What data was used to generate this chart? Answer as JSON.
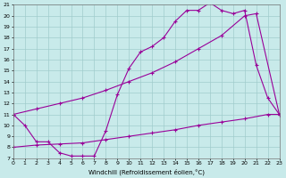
{
  "xlabel": "Windchill (Refroidissement éolien,°C)",
  "line_color": "#990099",
  "bg_color": "#c8eaea",
  "grid_color": "#a0cccc",
  "xlim": [
    0,
    23
  ],
  "ylim": [
    7,
    21
  ],
  "xticks": [
    0,
    1,
    2,
    3,
    4,
    5,
    6,
    7,
    8,
    9,
    10,
    11,
    12,
    13,
    14,
    15,
    16,
    17,
    18,
    19,
    20,
    21,
    22,
    23
  ],
  "yticks": [
    7,
    8,
    9,
    10,
    11,
    12,
    13,
    14,
    15,
    16,
    17,
    18,
    19,
    20,
    21
  ],
  "series": [
    {
      "x": [
        0,
        1,
        2,
        3,
        4,
        5,
        6,
        7,
        8,
        9,
        10,
        11,
        12,
        13,
        14,
        15,
        16,
        17,
        18,
        19,
        20,
        21,
        22,
        23
      ],
      "y": [
        11,
        10,
        8.5,
        8.5,
        7.5,
        7.2,
        7.2,
        7.2,
        9.5,
        12.8,
        15.2,
        16.7,
        17.2,
        18.0,
        19.5,
        20.5,
        20.5,
        21.2,
        20.5,
        20.2,
        20.5,
        15.5,
        12.5,
        11
      ]
    },
    {
      "x": [
        0,
        2,
        4,
        6,
        8,
        10,
        12,
        14,
        16,
        18,
        20,
        21,
        23
      ],
      "y": [
        11,
        11.5,
        12.0,
        12.5,
        13.2,
        14.0,
        14.8,
        15.8,
        17.0,
        18.2,
        20.0,
        20.2,
        11
      ]
    },
    {
      "x": [
        0,
        2,
        4,
        6,
        8,
        10,
        12,
        14,
        16,
        18,
        20,
        22,
        23
      ],
      "y": [
        8,
        8.2,
        8.3,
        8.4,
        8.7,
        9.0,
        9.3,
        9.6,
        10.0,
        10.3,
        10.6,
        11.0,
        11
      ]
    }
  ]
}
